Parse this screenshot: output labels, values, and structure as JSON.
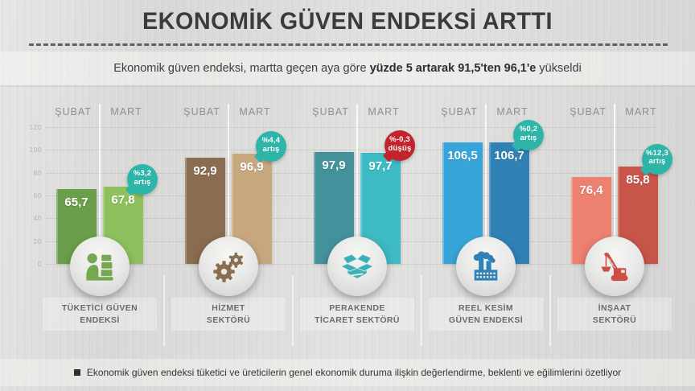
{
  "header": {
    "title": "EKONOMİK GÜVEN ENDEKSİ ARTTI"
  },
  "subtitle": {
    "prefix": "Ekonomik güven endeksi, martta geçen aya göre ",
    "bold": "yüzde 5 artarak 91,5'ten 96,1'e",
    "suffix": " yükseldi"
  },
  "columns": {
    "feb": "ŞUBAT",
    "mar": "MART"
  },
  "note": {
    "text": "Ekonomik güven endeksi tüketici ve üreticilerin genel ekonomik duruma ilişkin değerlendirme, beklenti ve eğilimlerini özetliyor"
  },
  "colors": {
    "badge_increase": "#2db5a9",
    "badge_decrease": "#c2242d",
    "title_text": "#3b3b3b",
    "background": "#dcdcda"
  },
  "chart_data": {
    "type": "bar",
    "title": "EKONOMİK GÜVEN ENDEKSİ ARTTI",
    "categories": [
      "ŞUBAT",
      "MART"
    ],
    "ylim": [
      0,
      120
    ],
    "yticks": [
      120,
      100,
      80,
      60,
      40,
      20,
      0
    ],
    "grid": true,
    "legend_position": "none",
    "groups": [
      {
        "name_line1": "TÜKETİCİ GÜVEN",
        "name_line2": "ENDEKSİ",
        "feb_value": 65.7,
        "mar_value": 67.8,
        "feb_label": "65,7",
        "mar_label": "67,8",
        "change_line1": "%3,2",
        "change_line2": "artış",
        "change_type": "increase",
        "badge_color": "#2db5a9",
        "feb_color": "#6b9e4a",
        "mar_color": "#8fc05e",
        "icon": "consumer-icon",
        "icon_color": "#76a94f"
      },
      {
        "name_line1": "HİZMET",
        "name_line2": "SEKTÖRÜ",
        "feb_value": 92.9,
        "mar_value": 96.9,
        "feb_label": "92,9",
        "mar_label": "96,9",
        "change_line1": "%4,4",
        "change_line2": "artış",
        "change_type": "increase",
        "badge_color": "#2db5a9",
        "feb_color": "#8a6c50",
        "mar_color": "#c7a87e",
        "icon": "gears-icon",
        "icon_color": "#8a6c50"
      },
      {
        "name_line1": "PERAKENDE",
        "name_line2": "TİCARET SEKTÖRÜ",
        "feb_value": 97.9,
        "mar_value": 97.7,
        "feb_label": "97,9",
        "mar_label": "97,7",
        "change_line1": "%-0,3",
        "change_line2": "düşüş",
        "change_type": "decrease",
        "badge_color": "#c2242d",
        "feb_color": "#43929b",
        "mar_color": "#3dbac4",
        "icon": "box-icon",
        "icon_color": "#3ab0ba"
      },
      {
        "name_line1": "REEL KESİM",
        "name_line2": "GÜVEN ENDEKSİ",
        "feb_value": 106.5,
        "mar_value": 106.7,
        "feb_label": "106,5",
        "mar_label": "106,7",
        "change_line1": "%0,2",
        "change_line2": "artış",
        "change_type": "increase",
        "badge_color": "#2db5a9",
        "feb_color": "#38a5da",
        "mar_color": "#2f81b6",
        "icon": "factory-icon",
        "icon_color": "#2f81b6"
      },
      {
        "name_line1": "İNŞAAT",
        "name_line2": "SEKTÖRÜ",
        "feb_value": 76.4,
        "mar_value": 85.8,
        "feb_label": "76,4",
        "mar_label": "85,8",
        "change_line1": "%12,3",
        "change_line2": "artış",
        "change_type": "increase",
        "badge_color": "#2db5a9",
        "feb_color": "#ec8071",
        "mar_color": "#c85549",
        "icon": "crane-icon",
        "icon_color": "#cc4f43"
      }
    ]
  }
}
